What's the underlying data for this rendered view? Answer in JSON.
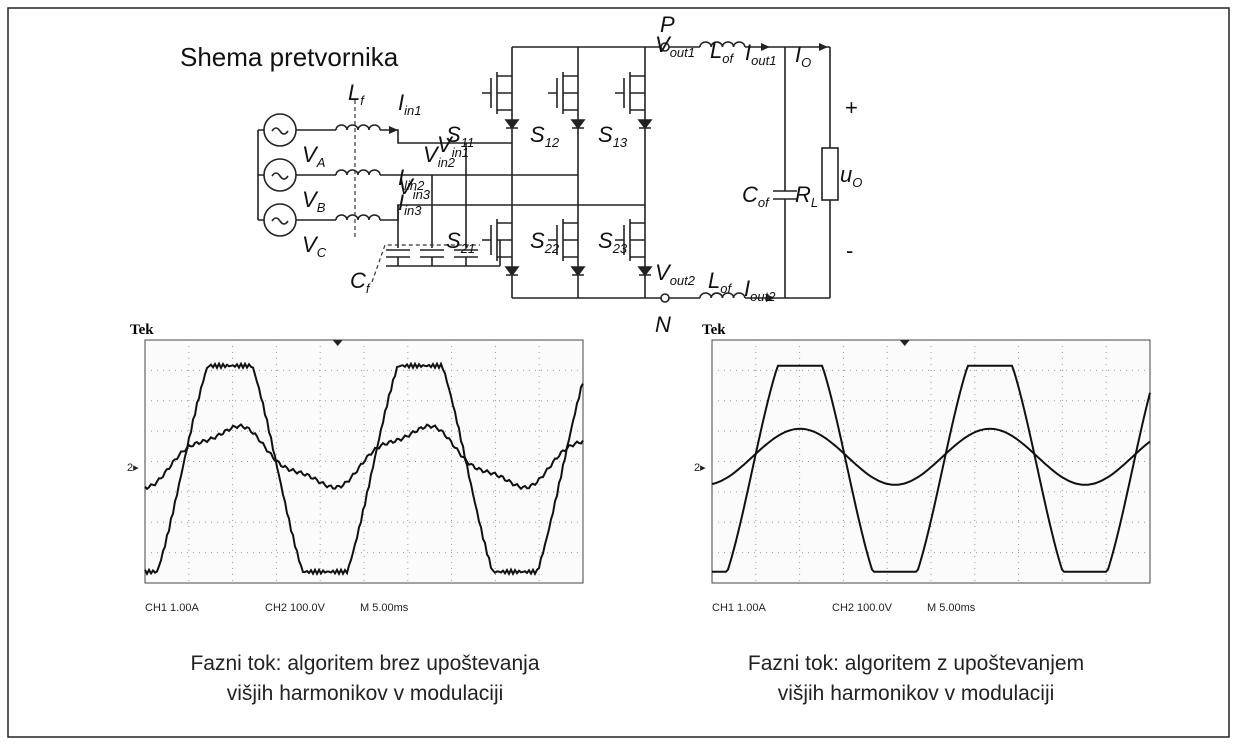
{
  "title": "Shema pretvornika",
  "circuit": {
    "labels": [
      {
        "text": "L",
        "sub": "f"
      },
      {
        "text": "I",
        "sub": "in1"
      },
      {
        "text": "V",
        "sub": "in1"
      },
      {
        "text": "V",
        "sub": "A"
      },
      {
        "text": "I",
        "sub": "lin2"
      },
      {
        "text": "V",
        "sub": "in2"
      },
      {
        "text": "V",
        "sub": "B"
      },
      {
        "text": "I",
        "sub": "in3"
      },
      {
        "text": "V",
        "sub": "in3"
      },
      {
        "text": "V",
        "sub": "C"
      },
      {
        "text": "C",
        "sub": "f"
      },
      {
        "text": "S",
        "sub": "11"
      },
      {
        "text": "S",
        "sub": "12"
      },
      {
        "text": "S",
        "sub": "13"
      },
      {
        "text": "S",
        "sub": "21"
      },
      {
        "text": "S",
        "sub": "22"
      },
      {
        "text": "S",
        "sub": "23"
      },
      {
        "text": "P"
      },
      {
        "text": "V",
        "sub": "out1"
      },
      {
        "text": "L",
        "sub": "of"
      },
      {
        "text": "I",
        "sub": "out1"
      },
      {
        "text": "I",
        "sub": "O"
      },
      {
        "text": "+"
      },
      {
        "text": "u",
        "sub": "O"
      },
      {
        "text": "C",
        "sub": "of"
      },
      {
        "text": "R",
        "sub": "L"
      },
      {
        "text": "-"
      },
      {
        "text": "V",
        "sub": "out2"
      },
      {
        "text": "L",
        "sub": "of"
      },
      {
        "text": "I",
        "sub": "out2"
      },
      {
        "text": "N"
      }
    ]
  },
  "scopes": [
    {
      "brand": "Tek",
      "marker": "2▸",
      "ch1": "CH1 1.00A",
      "ch2": "CH2 100.0V",
      "timebase": "M 5.00ms",
      "caption": [
        "Fazni tok: algoritem brez upoštevanja",
        "višjih harmonikov v modulaciji"
      ]
    },
    {
      "brand": "Tek",
      "marker": "2▸",
      "ch1": "CH1 1.00A",
      "ch2": "CH2 100.0V",
      "timebase": "M 5.00ms",
      "caption": [
        "Fazni tok: algoritem z upoštevanjem",
        "višjih harmonikov v modulaciji"
      ]
    }
  ]
}
